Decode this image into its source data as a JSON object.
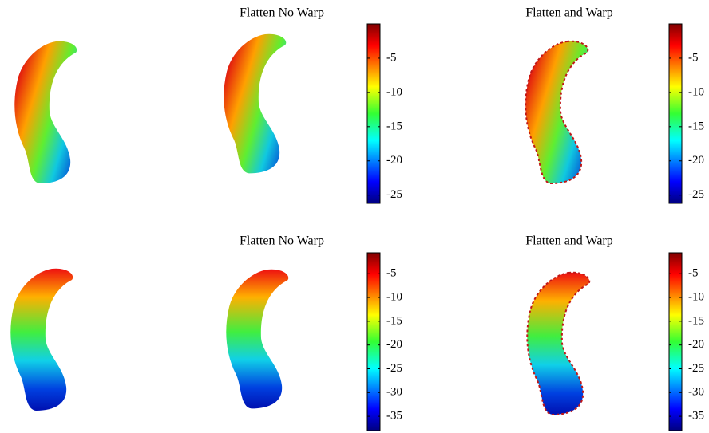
{
  "rows": [
    {
      "panels": [
        {
          "title": "Flatten No Warp",
          "colorbar": {
            "ylim": [
              -26.2,
              0
            ],
            "yticks": [
              -25,
              -20,
              -15,
              -10,
              -5
            ]
          }
        },
        {
          "title": "Flatten and Warp",
          "colorbar": {
            "ylim": [
              -26.2,
              0
            ],
            "yticks": [
              -25,
              -20,
              -15,
              -10,
              -5
            ]
          }
        }
      ]
    },
    {
      "panels": [
        {
          "title": "Flatten No Warp",
          "colorbar": {
            "ylim": [
              -38,
              -0.6
            ],
            "yticks": [
              -35,
              -30,
              -25,
              -20,
              -15,
              -10,
              -5
            ]
          }
        },
        {
          "title": "Flatten and Warp",
          "colorbar": {
            "ylim": [
              -38,
              -0.6
            ],
            "yticks": [
              -35,
              -30,
              -25,
              -20,
              -15,
              -10,
              -5
            ]
          }
        }
      ]
    }
  ]
}
